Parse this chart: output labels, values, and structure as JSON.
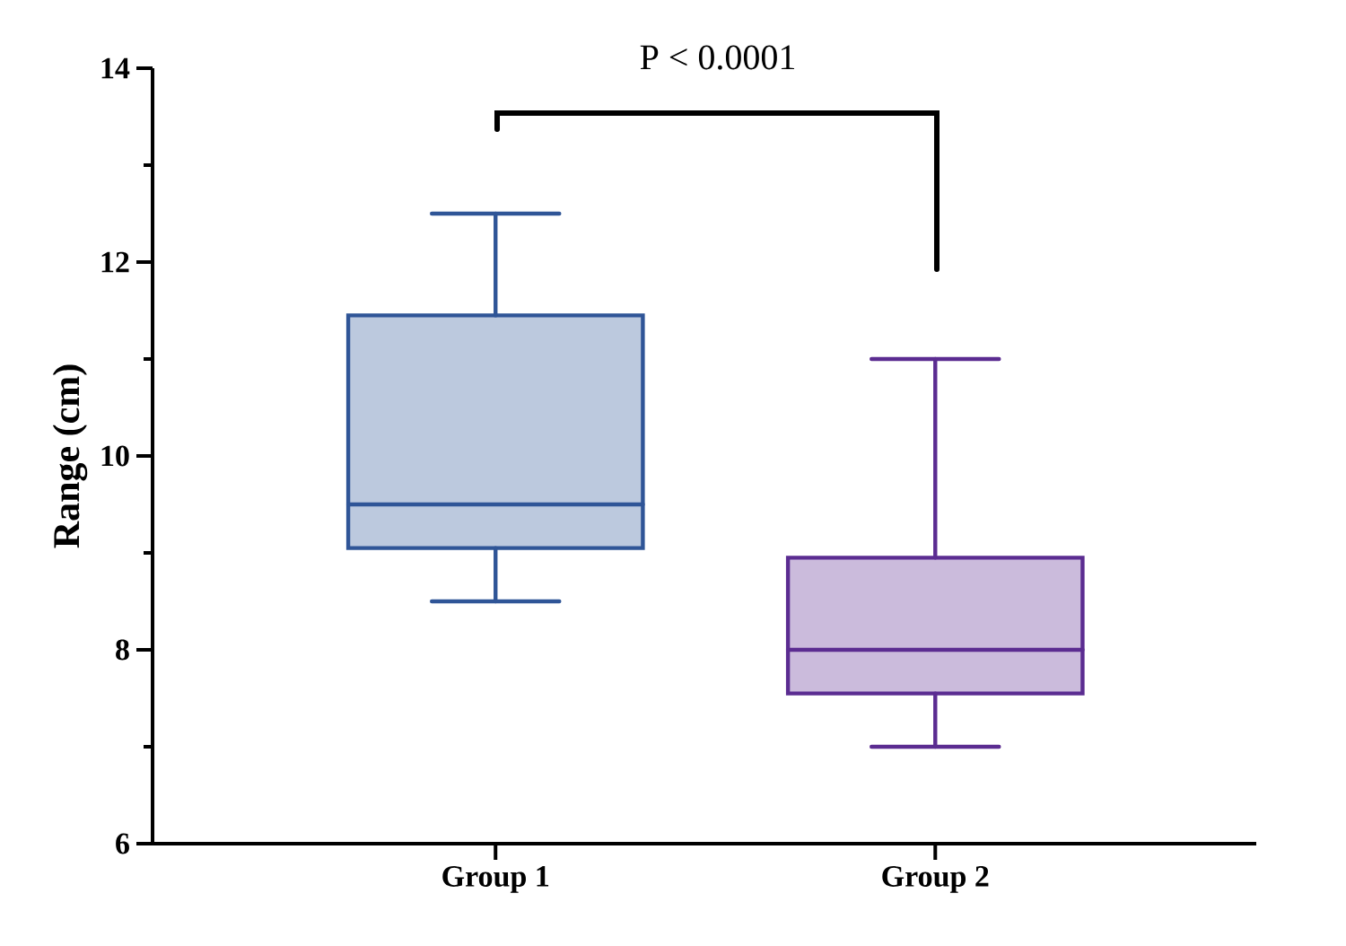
{
  "chart_data": {
    "type": "box",
    "ylabel": "Range (cm)",
    "categories": [
      "Group 1",
      "Group 2"
    ],
    "boxes": [
      {
        "low": 8.5,
        "q1": 9.05,
        "median": 9.5,
        "q3": 11.45,
        "high": 12.5
      },
      {
        "low": 7,
        "q1": 7.55,
        "median": 8,
        "q3": 8.95,
        "high": 11
      }
    ],
    "colors": [
      "#2f5597",
      "#5b2c91"
    ],
    "ylim": [
      6,
      14
    ],
    "yticks": [
      6,
      8,
      10,
      12,
      14
    ],
    "annotations": [
      "P < 0.0001"
    ]
  }
}
